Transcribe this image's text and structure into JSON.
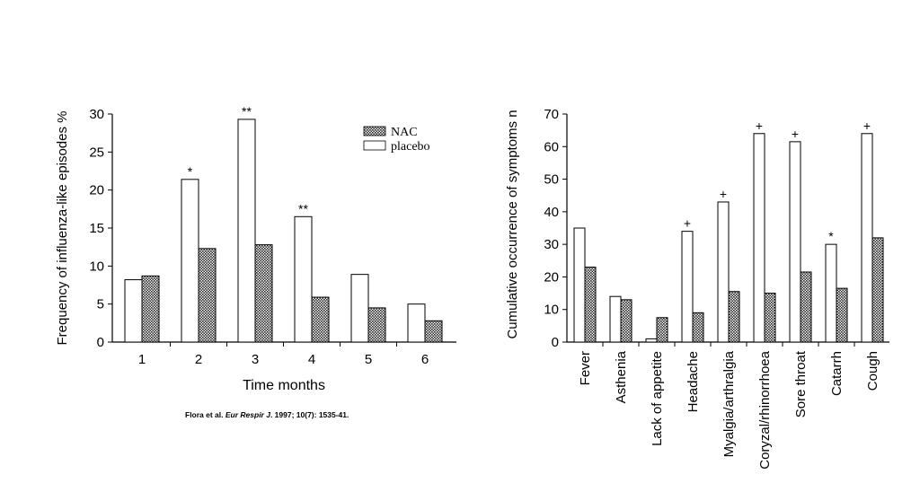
{
  "chart_data": [
    {
      "type": "bar",
      "title": "",
      "xlabel": "Time  months",
      "ylabel": "Frequency of influenza-like episodes  %",
      "ylim": [
        0,
        30
      ],
      "yticks": [
        "0",
        "5",
        "10",
        "15",
        "20",
        "25",
        "30"
      ],
      "categories": [
        "1",
        "2",
        "3",
        "4",
        "5",
        "6"
      ],
      "series": [
        {
          "name": "placebo",
          "values": [
            8.2,
            21.4,
            29.3,
            16.5,
            8.9,
            5.0
          ]
        },
        {
          "name": "NAC",
          "values": [
            8.7,
            12.3,
            12.8,
            5.9,
            4.5,
            2.8
          ]
        }
      ],
      "annotations": [
        "",
        "*",
        "**",
        "**",
        "",
        ""
      ],
      "legend": {
        "position": "top-right",
        "entries": [
          "NAC",
          "placebo"
        ]
      },
      "grid": false
    },
    {
      "type": "bar",
      "title": "",
      "xlabel": "",
      "ylabel": "Cumulative occurrence of symptoms  n",
      "ylim": [
        0,
        70
      ],
      "yticks": [
        "0",
        "10",
        "20",
        "30",
        "40",
        "50",
        "60",
        "70"
      ],
      "categories": [
        "Fever",
        "Asthenia",
        "Lack of appetite",
        "Headache",
        "Myalgia/arthralgia",
        "Coryzal/rhinorrhoea",
        "Sore throat",
        "Catarrh",
        "Cough"
      ],
      "series": [
        {
          "name": "placebo",
          "values": [
            35,
            14,
            1,
            34,
            43,
            64,
            61.5,
            30,
            64
          ]
        },
        {
          "name": "NAC",
          "values": [
            23,
            13,
            7.5,
            9,
            15.5,
            15,
            21.5,
            16.5,
            32
          ]
        }
      ],
      "annotations": [
        "",
        "",
        "",
        "+",
        "+",
        "+",
        "+",
        "*",
        "+"
      ],
      "grid": false
    }
  ],
  "citation": {
    "authors": "Flora et al. ",
    "journal": "Eur Respir J",
    "rest": ". 1997; 10(7): 1535-41."
  },
  "colors": {
    "placebo_fill": "#ffffff",
    "nac_hatch": "#2a2a2a",
    "axis": "#000000"
  }
}
